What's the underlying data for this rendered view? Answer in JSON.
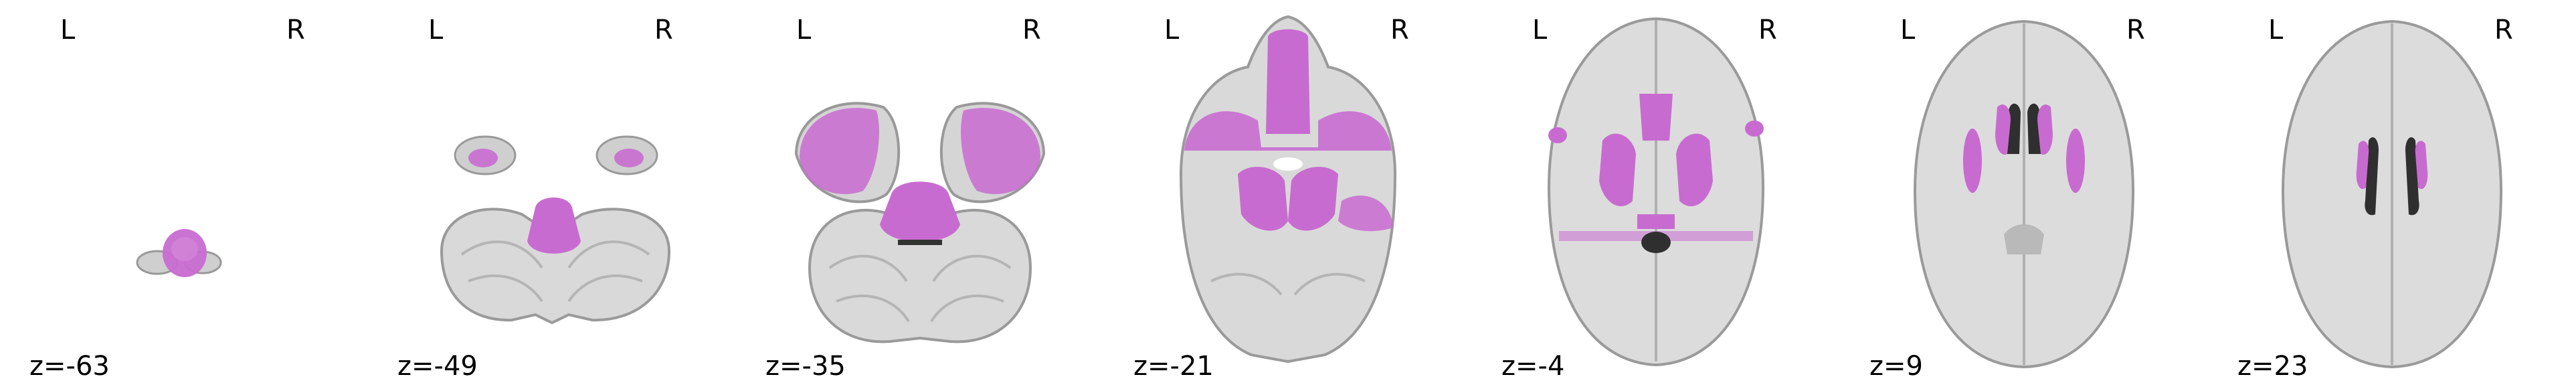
{
  "figure": {
    "background": "#ffffff",
    "overlay_color": "#c86bd0",
    "brain_gray": "#d9d9d9",
    "brain_edge": "#9a9a9a",
    "ventricle_color": "#3a3a3a"
  },
  "slices": [
    {
      "left": "L",
      "right": "R",
      "coord": "z=-63"
    },
    {
      "left": "L",
      "right": "R",
      "coord": "z=-49"
    },
    {
      "left": "L",
      "right": "R",
      "coord": "z=-35"
    },
    {
      "left": "L",
      "right": "R",
      "coord": "z=-21"
    },
    {
      "left": "L",
      "right": "R",
      "coord": "z=-4"
    },
    {
      "left": "L",
      "right": "R",
      "coord": "z=9"
    },
    {
      "left": "L",
      "right": "R",
      "coord": "z=23"
    }
  ]
}
